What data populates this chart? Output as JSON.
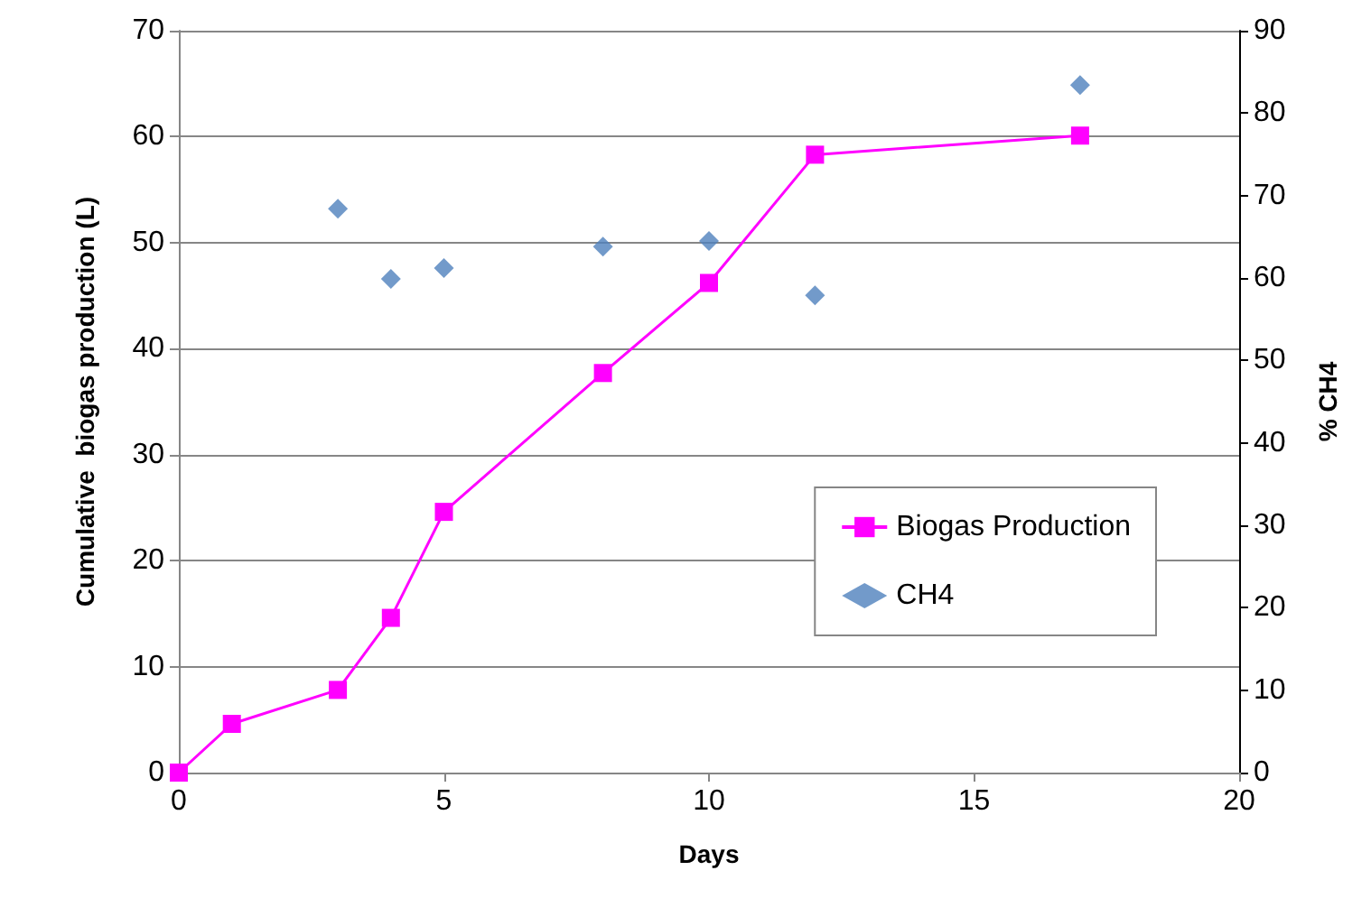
{
  "chart_data": {
    "type": "line",
    "xlabel": "Days",
    "ylabel": "Cumulative  biogas production (L)",
    "y2label": "% CH4",
    "xlim": [
      0,
      20
    ],
    "xticks": [
      0,
      5,
      10,
      15,
      20
    ],
    "ylim": [
      0,
      70
    ],
    "yticks": [
      0,
      10,
      20,
      30,
      40,
      50,
      60,
      70
    ],
    "y2lim": [
      0,
      90
    ],
    "y2ticks": [
      0,
      10,
      20,
      30,
      40,
      50,
      60,
      70,
      80,
      90
    ],
    "grid": "y",
    "legend": "right",
    "series": [
      {
        "name": "Biogas Production",
        "color": "#ff00ff",
        "marker": "square",
        "line_style": "solid",
        "x": [
          0,
          1,
          3,
          4,
          5,
          8,
          10,
          12,
          17
        ],
        "values": [
          0,
          4.6,
          7.8,
          14.6,
          24.6,
          37.7,
          46.2,
          58.3,
          60.1
        ]
      },
      {
        "name": "CH4",
        "type": "scatter",
        "axis": "y2",
        "color": "#4f81bd",
        "marker": "diamond",
        "x": [
          3,
          4,
          5,
          8,
          10,
          12,
          17
        ],
        "values": [
          68.4,
          59.9,
          61.2,
          63.8,
          64.5,
          57.9,
          83.4
        ]
      }
    ]
  }
}
